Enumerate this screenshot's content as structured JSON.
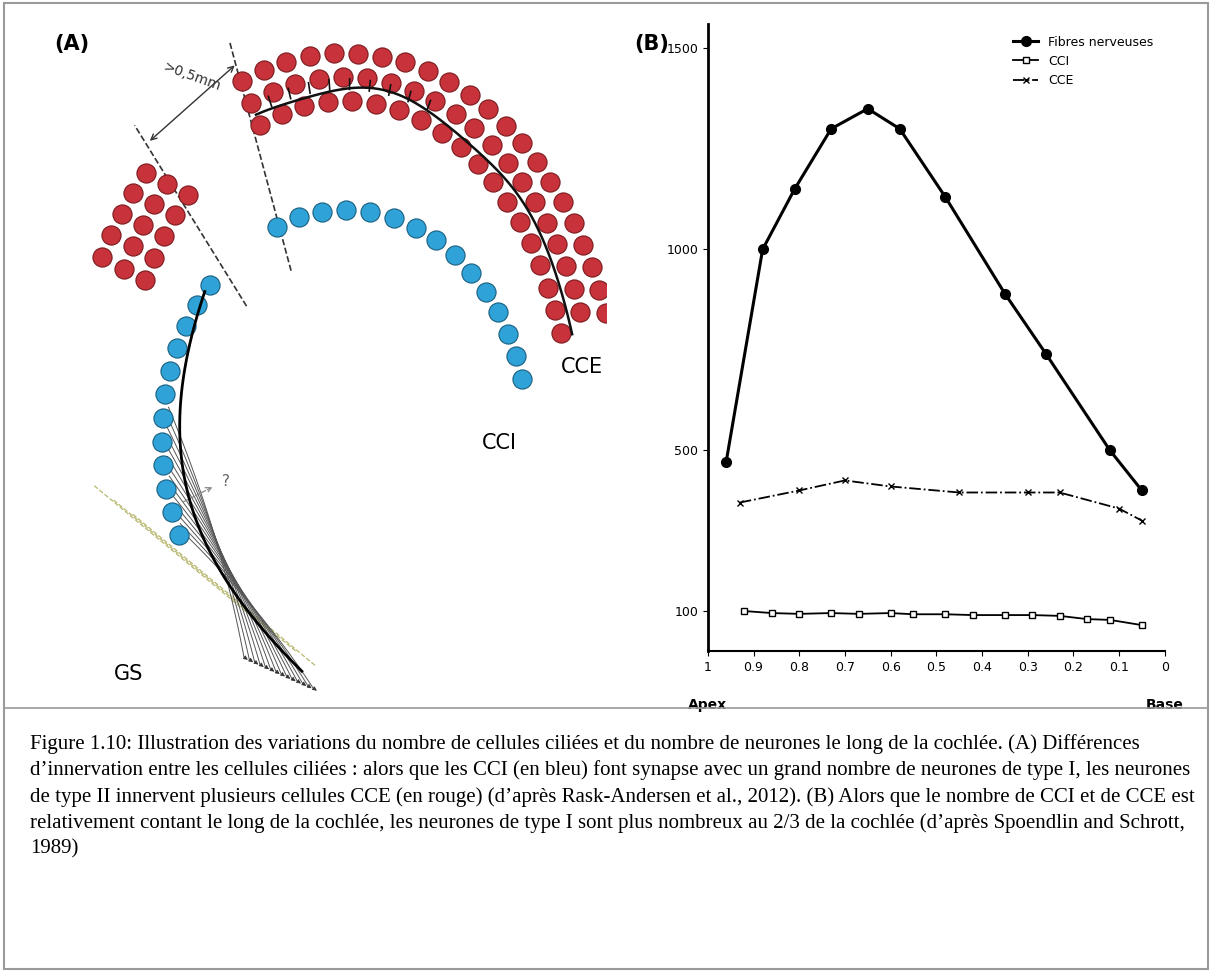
{
  "panel_a": {
    "panel_label": "(A)",
    "distance": ">0,5mm",
    "labels": {
      "outer_cells": "CCE",
      "inner_cells": "CCI",
      "ganglion": "GS",
      "unknown": "?"
    }
  },
  "chart_data": {
    "type": "line",
    "panel_label": "(B)",
    "series": [
      {
        "name": "Fibres nerveuses",
        "color": "#000000",
        "marker": "o",
        "line_style": "solid",
        "x": [
          0.96,
          0.88,
          0.81,
          0.73,
          0.65,
          0.58,
          0.48,
          0.35,
          0.26,
          0.12,
          0.05
        ],
        "values": [
          470,
          1000,
          1150,
          1300,
          1350,
          1300,
          1130,
          890,
          740,
          500,
          400
        ]
      },
      {
        "name": "CCI",
        "color": "#000000",
        "marker": "s",
        "line_style": "solid",
        "x": [
          0.92,
          0.86,
          0.8,
          0.73,
          0.67,
          0.6,
          0.55,
          0.48,
          0.42,
          0.35,
          0.29,
          0.23,
          0.17,
          0.12,
          0.05
        ],
        "values": [
          100,
          95,
          93,
          95,
          93,
          95,
          92,
          92,
          90,
          90,
          90,
          88,
          80,
          78,
          65
        ]
      },
      {
        "name": "CCE",
        "color": "#000000",
        "marker": "x",
        "line_style": "dashdot",
        "x": [
          0.93,
          0.8,
          0.7,
          0.6,
          0.45,
          0.3,
          0.23,
          0.1,
          0.05
        ],
        "values": [
          370,
          400,
          425,
          410,
          395,
          395,
          395,
          355,
          325
        ]
      }
    ],
    "xlim": [
      1,
      0
    ],
    "xticks": [
      1,
      0.9,
      0.8,
      0.7,
      0.6,
      0.5,
      0.4,
      0.3,
      0.2,
      0.1,
      0
    ],
    "ylim": [
      0,
      1560
    ],
    "yticks": [
      100,
      500,
      1000,
      1500
    ],
    "annotations": [
      {
        "text": "Apex",
        "x": 1
      },
      {
        "text": "Base",
        "x": 0
      }
    ],
    "legend": "upper right",
    "grid": false
  },
  "caption": "Figure 1.10: Illustration des variations du nombre de cellules ciliées et du nombre de neurones le long de la cochlée. (A) Différences d’innervation entre les cellules ciliées : alors que les CCI (en bleu) font synapse avec un grand nombre de neurones de type I, les neurones de type II innervent plusieurs cellules CCE (en rouge) (d’après Rask-Andersen et al., 2012). (B) Alors que le nombre de CCI et de CCE est relativement contant le long de la cochlée, les neurones de type I sont plus nombreux au 2/3 de la cochlée (d’après Spoendlin and Schrott, 1989)"
}
